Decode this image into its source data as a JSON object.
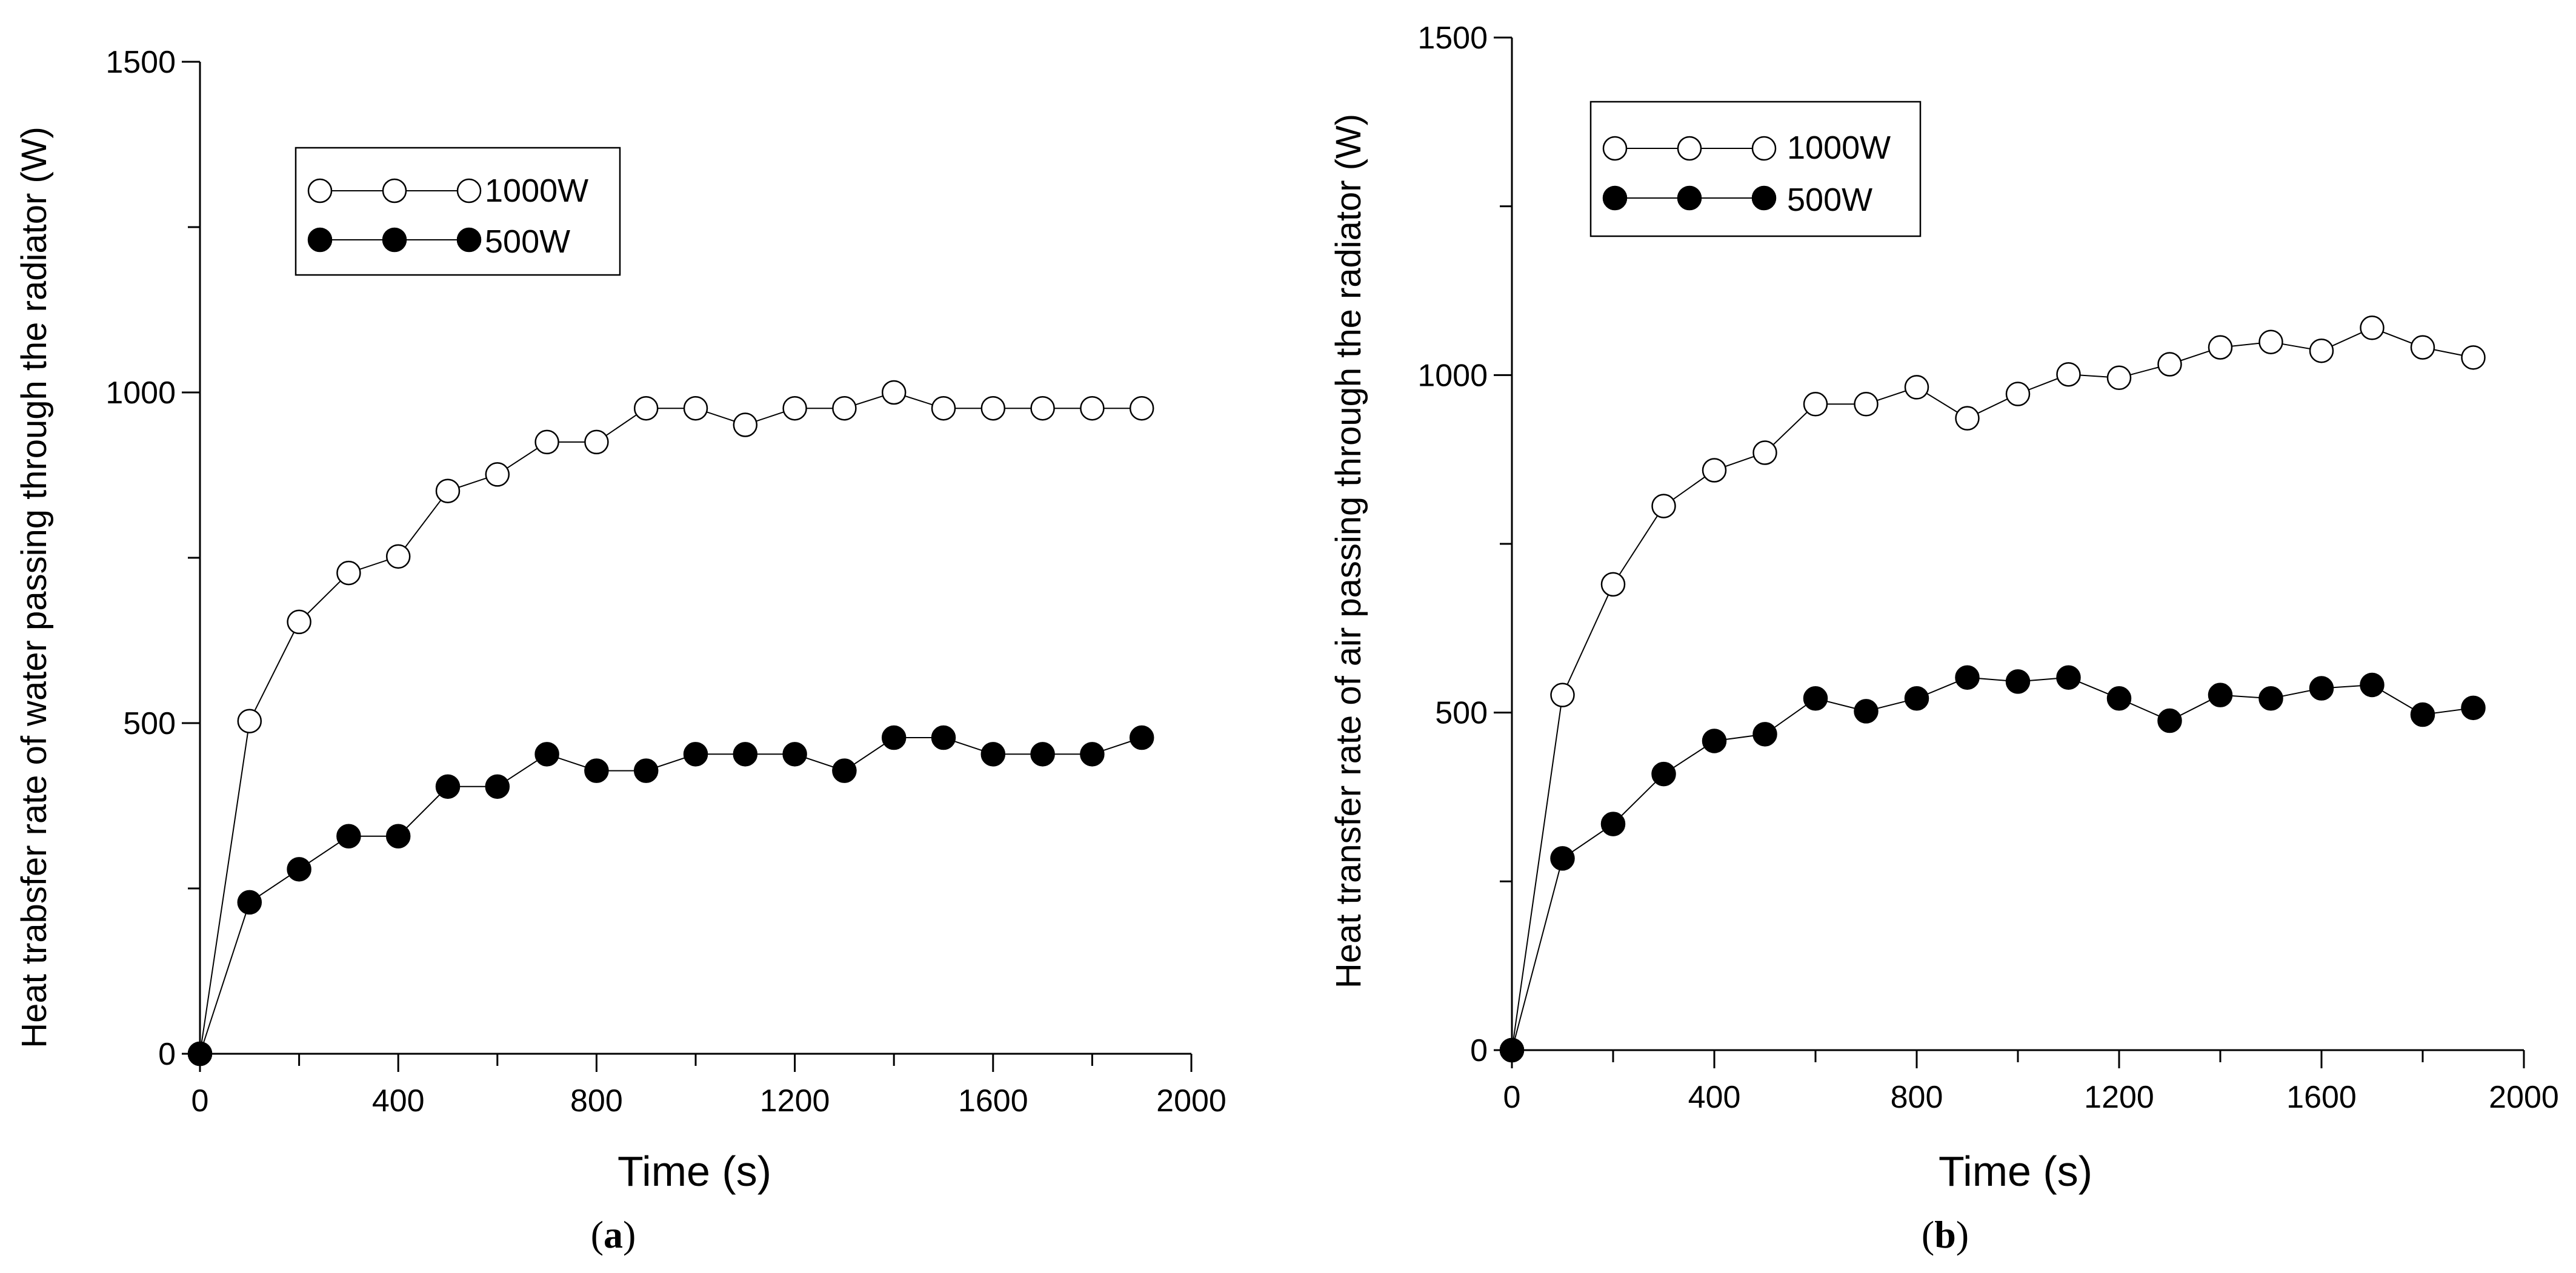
{
  "colors": {
    "background": "#ffffff",
    "ink": "#000000",
    "open_marker_fill": "#ffffff",
    "filled_marker_fill": "#000000"
  },
  "chart_data": [
    {
      "panel": "(a)",
      "panel_label_bold": "a",
      "type": "line",
      "title": "",
      "xlabel": "Time (s)",
      "ylabel": "Heat trabsfer rate of water passing through the radiator (W)",
      "xlim": [
        0,
        2000
      ],
      "ylim": [
        0,
        1500
      ],
      "xticks_labeled": [
        0,
        400,
        800,
        1200,
        1600,
        2000
      ],
      "xtick_labels": [
        "0",
        "400",
        "800",
        "1200",
        "1600",
        "2000"
      ],
      "xticks_minor": [
        200,
        600,
        1000,
        1400,
        1800
      ],
      "yticks_labeled": [
        0,
        500,
        1000,
        1500
      ],
      "ytick_labels": [
        "0",
        "500",
        "1000",
        "1500"
      ],
      "yticks_minor": [
        250,
        750,
        1250
      ],
      "grid": false,
      "legend": "upper-left",
      "x": [
        0,
        100,
        200,
        300,
        400,
        500,
        600,
        700,
        800,
        900,
        1000,
        1100,
        1200,
        1300,
        1400,
        1500,
        1600,
        1700,
        1800,
        1900
      ],
      "series": [
        {
          "name": "1000W",
          "marker": "open-circle",
          "values": [
            0,
            503,
            653,
            727,
            752,
            851,
            876,
            925,
            925,
            976,
            976,
            951,
            976,
            976,
            1000,
            976,
            976,
            976,
            976,
            976
          ]
        },
        {
          "name": "500W",
          "marker": "filled-circle",
          "values": [
            0,
            229,
            279,
            329,
            329,
            404,
            404,
            453,
            428,
            428,
            453,
            453,
            453,
            428,
            478,
            478,
            453,
            453,
            453,
            478
          ]
        }
      ]
    },
    {
      "panel": "(b)",
      "panel_label_bold": "b",
      "type": "line",
      "title": "",
      "xlabel": "Time (s)",
      "ylabel": "Heat transfer rate of air passing through the radiator (W)",
      "xlim": [
        0,
        2000
      ],
      "ylim": [
        0,
        1500
      ],
      "xticks_labeled": [
        0,
        400,
        800,
        1200,
        1600,
        2000
      ],
      "xtick_labels": [
        "0",
        "400",
        "800",
        "1200",
        "1600",
        "2000"
      ],
      "xticks_minor": [
        200,
        600,
        1000,
        1400,
        1800
      ],
      "yticks_labeled": [
        0,
        500,
        1000,
        1500
      ],
      "ytick_labels": [
        "0",
        "500",
        "1000",
        "1500"
      ],
      "yticks_minor": [
        250,
        750,
        1250
      ],
      "grid": false,
      "legend": "upper-left",
      "x": [
        0,
        100,
        200,
        300,
        400,
        500,
        600,
        700,
        800,
        900,
        1000,
        1100,
        1200,
        1300,
        1400,
        1500,
        1600,
        1700,
        1800,
        1900
      ],
      "series": [
        {
          "name": "1000W",
          "marker": "open-circle",
          "values": [
            0,
            526,
            690,
            806,
            859,
            885,
            957,
            957,
            982,
            936,
            972,
            1001,
            996,
            1016,
            1041,
            1049,
            1036,
            1070,
            1041,
            1026
          ]
        },
        {
          "name": "500W",
          "marker": "filled-circle",
          "values": [
            0,
            284,
            335,
            409,
            458,
            468,
            521,
            502,
            521,
            552,
            546,
            552,
            521,
            488,
            526,
            521,
            536,
            541,
            497,
            507
          ]
        }
      ]
    }
  ]
}
